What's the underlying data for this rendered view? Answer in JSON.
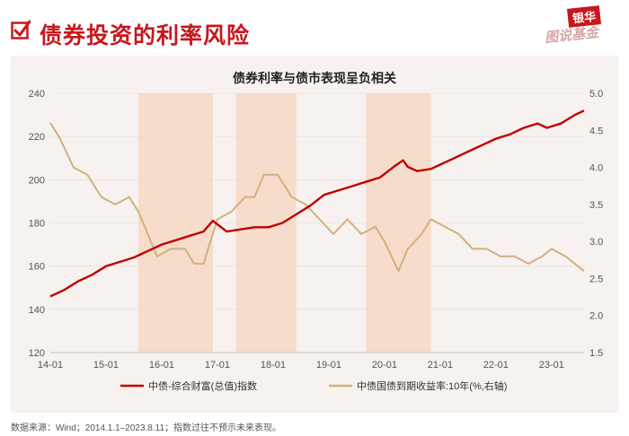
{
  "header": {
    "title": "债券投资的利率风险",
    "logo_top": "银华",
    "logo_bottom": "图说基金"
  },
  "footnote": "数据来源：Wind；2014.1.1–2023.8.11；指数过往不预示未来表现。",
  "colors": {
    "brand_red": "#c8171e",
    "index_line": "#c00000",
    "yield_line": "#d2b080",
    "shade": "#f6dccb"
  },
  "chart_data": {
    "type": "line",
    "title": "债券利率与债市表现呈负相关",
    "x_ticks": [
      "14-01",
      "15-01",
      "16-01",
      "17-01",
      "18-01",
      "19-01",
      "20-01",
      "21-01",
      "22-01",
      "23-01"
    ],
    "x_range": [
      "2014-01",
      "2023-08"
    ],
    "y_left": {
      "ylim": [
        120,
        240
      ],
      "ticks": [
        120,
        140,
        160,
        180,
        200,
        220,
        240
      ]
    },
    "y_right": {
      "ylim": [
        1.5,
        5.0
      ],
      "ticks": [
        "1.5",
        "2.0",
        "2.5",
        "3.0",
        "3.5",
        "4.0",
        "4.5",
        "5.0"
      ]
    },
    "shaded_periods": [
      [
        "2015-08",
        "2016-12"
      ],
      [
        "2017-05",
        "2018-06"
      ],
      [
        "2019-09",
        "2020-11"
      ]
    ],
    "series": [
      {
        "name": "中债-综合财富(总值)指数",
        "axis": "left",
        "x": [
          "2014-01",
          "2014-04",
          "2014-07",
          "2014-10",
          "2015-01",
          "2015-04",
          "2015-07",
          "2015-10",
          "2016-01",
          "2016-04",
          "2016-07",
          "2016-10",
          "2016-12",
          "2017-03",
          "2017-06",
          "2017-09",
          "2017-12",
          "2018-03",
          "2018-06",
          "2018-09",
          "2018-12",
          "2019-03",
          "2019-06",
          "2019-09",
          "2019-12",
          "2020-03",
          "2020-05",
          "2020-06",
          "2020-08",
          "2020-11",
          "2021-01",
          "2021-04",
          "2021-07",
          "2021-10",
          "2022-01",
          "2022-04",
          "2022-07",
          "2022-10",
          "2022-12",
          "2023-03",
          "2023-06",
          "2023-08"
        ],
        "values": [
          146,
          149,
          153,
          156,
          160,
          162,
          164,
          167,
          170,
          172,
          174,
          176,
          181,
          176,
          177,
          178,
          178,
          180,
          184,
          188,
          193,
          195,
          197,
          199,
          201,
          206,
          209,
          206,
          204,
          205,
          207,
          210,
          213,
          216,
          219,
          221,
          224,
          226,
          224,
          226,
          230,
          232
        ]
      },
      {
        "name": "中债国债到期收益率:10年(%,右轴)",
        "axis": "right",
        "x": [
          "2014-01",
          "2014-03",
          "2014-06",
          "2014-09",
          "2014-12",
          "2015-03",
          "2015-06",
          "2015-08",
          "2015-10",
          "2015-12",
          "2016-03",
          "2016-06",
          "2016-08",
          "2016-10",
          "2016-12",
          "2017-01",
          "2017-04",
          "2017-07",
          "2017-09",
          "2017-11",
          "2018-02",
          "2018-05",
          "2018-08",
          "2018-11",
          "2019-02",
          "2019-05",
          "2019-08",
          "2019-11",
          "2020-01",
          "2020-04",
          "2020-06",
          "2020-09",
          "2020-11",
          "2021-02",
          "2021-05",
          "2021-08",
          "2021-11",
          "2022-02",
          "2022-05",
          "2022-08",
          "2022-11",
          "2023-01",
          "2023-04",
          "2023-06",
          "2023-08"
        ],
        "values": [
          4.6,
          4.4,
          4.0,
          3.9,
          3.6,
          3.5,
          3.6,
          3.4,
          3.1,
          2.8,
          2.9,
          2.9,
          2.7,
          2.7,
          3.1,
          3.3,
          3.4,
          3.6,
          3.6,
          3.9,
          3.9,
          3.6,
          3.5,
          3.3,
          3.1,
          3.3,
          3.1,
          3.2,
          3.0,
          2.6,
          2.9,
          3.1,
          3.3,
          3.2,
          3.1,
          2.9,
          2.9,
          2.8,
          2.8,
          2.7,
          2.8,
          2.9,
          2.8,
          2.7,
          2.6
        ]
      }
    ],
    "legend_position": "bottom"
  }
}
